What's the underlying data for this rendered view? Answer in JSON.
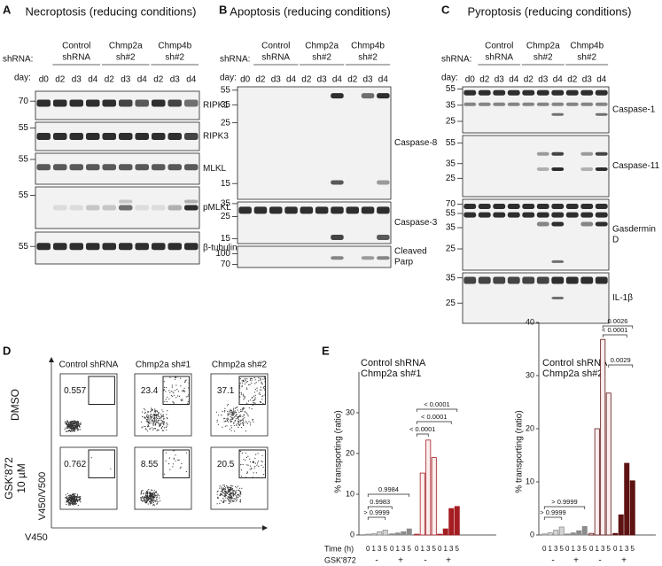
{
  "panels": {
    "A": {
      "label": "A",
      "title": "Necroptosis (reducing conditions)",
      "shrna_label": "shRNA:",
      "groups": [
        {
          "lines": [
            "Control",
            "shRNA"
          ],
          "color": "#8c8c8c"
        },
        {
          "lines": [
            "Chmp2a",
            "sh#2"
          ],
          "color": "#7b1f1f"
        },
        {
          "lines": [
            "Chmp4b",
            "sh#2"
          ],
          "color": "#4f86d8"
        }
      ],
      "day_label": "day:",
      "days": [
        "d0",
        "d2",
        "d3",
        "d4",
        "d2",
        "d3",
        "d4",
        "d2",
        "d3",
        "d4"
      ],
      "blots": [
        {
          "lines": [
            "RIPK1"
          ],
          "markers": [
            70
          ]
        },
        {
          "lines": [
            "RIPK3"
          ],
          "markers": [
            55
          ]
        },
        {
          "lines": [
            "MLKL"
          ],
          "markers": [
            55
          ]
        },
        {
          "lines": [
            "pMLKL"
          ],
          "markers": [
            55
          ]
        },
        {
          "lines": [
            "β-tubulin"
          ],
          "markers": [
            55
          ]
        }
      ]
    },
    "B": {
      "label": "B",
      "title": "Apoptosis (reducing conditions)",
      "shrna_label": "shRNA:",
      "groups": [
        {
          "lines": [
            "Control",
            "shRNA"
          ],
          "color": "#8c8c8c"
        },
        {
          "lines": [
            "Chmp2a",
            "sh#2"
          ],
          "color": "#7b1f1f"
        },
        {
          "lines": [
            "Chmp4b",
            "sh#2"
          ],
          "color": "#4f86d8"
        }
      ],
      "day_label": "day:",
      "days": [
        "d0",
        "d2",
        "d3",
        "d4",
        "d2",
        "d3",
        "d4",
        "d2",
        "d3",
        "d4"
      ],
      "blots": [
        {
          "lines": [
            "Caspase-8"
          ],
          "markers": [
            55,
            35,
            25,
            15
          ]
        },
        {
          "lines": [
            "Caspase-3"
          ],
          "markers": [
            35,
            25,
            15
          ]
        },
        {
          "lines": [
            "Cleaved",
            "Parp"
          ],
          "markers": [
            100,
            70
          ]
        }
      ]
    },
    "C": {
      "label": "C",
      "title": "Pyroptosis (reducing conditions)",
      "shrna_label": "shRNA:",
      "groups": [
        {
          "lines": [
            "Control",
            "shRNA"
          ],
          "color": "#8c8c8c"
        },
        {
          "lines": [
            "Chmp2a",
            "sh#2"
          ],
          "color": "#7b1f1f"
        },
        {
          "lines": [
            "Chmp4b",
            "sh#2"
          ],
          "color": "#4f86d8"
        }
      ],
      "day_label": "day:",
      "days": [
        "d0",
        "d2",
        "d3",
        "d4",
        "d2",
        "d3",
        "d4",
        "d2",
        "d3",
        "d4"
      ],
      "blots": [
        {
          "lines": [
            "Caspase-1"
          ],
          "markers": [
            55,
            35,
            25
          ]
        },
        {
          "lines": [
            "Caspase-11"
          ],
          "markers": [
            55,
            35,
            25
          ]
        },
        {
          "lines": [
            "Gasdermin",
            "D"
          ],
          "markers": [
            70,
            55,
            35,
            25
          ]
        },
        {
          "lines": [
            "IL-1β"
          ],
          "markers": [
            35,
            25
          ]
        }
      ]
    },
    "D": {
      "label": "D",
      "columns": [
        {
          "name": "Control shRNA",
          "color": "#8c8c8c"
        },
        {
          "name": "Chmp2a sh#1",
          "color": "#c0282d"
        },
        {
          "name": "Chmp2a sh#2",
          "color": "#7b1f1f"
        }
      ],
      "rows": [
        {
          "lines": [
            "DMSO"
          ]
        },
        {
          "lines": [
            "GSK'872",
            "10 µM"
          ]
        }
      ],
      "gate_values": [
        [
          0.557,
          23.4,
          37.1
        ],
        [
          0.762,
          8.55,
          20.5
        ]
      ],
      "y_axis": "V450/V500",
      "x_axis": "V450"
    },
    "E": {
      "label": "E",
      "time_label": "Time (h)",
      "times": [
        0,
        1,
        3,
        5
      ],
      "gsk_label": "GSK'872",
      "gsk_signs": [
        "-",
        "+",
        "-",
        "+"
      ],
      "charts": [
        {
          "type": "bar",
          "ylabel": "% transporting (ratio)",
          "ylim": [
            0,
            40
          ],
          "yticks": [
            0,
            10,
            20,
            30
          ],
          "series": [
            {
              "name": "Control shRNA",
              "color": "#8c8c8c",
              "values": [
                [
                  0.2,
                  0.3,
                  0.8,
                  1.2
                ],
                [
                  0.3,
                  0.5,
                  0.8,
                  1.5
                ]
              ]
            },
            {
              "name": "Chmp2a sh#1",
              "color": "#a51d22",
              "values": [
                [
                  0.2,
                  15.2,
                  23.3,
                  19
                ],
                [
                  0.2,
                  1.5,
                  6.5,
                  7
                ]
              ]
            }
          ],
          "p_values": [
            "> 0.9999",
            "0.9983",
            "0.9984",
            "< 0.0001",
            "< 0.0001",
            "< 0.0001"
          ]
        },
        {
          "type": "bar",
          "ylabel": "% transporting (ratio)",
          "ylim": [
            0,
            40
          ],
          "yticks": [
            0,
            10,
            20,
            30,
            40
          ],
          "series": [
            {
              "name": "Control shRNA",
              "color": "#8c8c8c",
              "values": [
                [
                  0.2,
                  0.4,
                  0.9,
                  1.5
                ],
                [
                  0.2,
                  0.4,
                  0.8,
                  1.6
                ]
              ]
            },
            {
              "name": "Chmp2a sh#2",
              "color": "#5e1212",
              "values": [
                [
                  0.3,
                  20,
                  36.8,
                  26.7
                ],
                [
                  0.3,
                  3.8,
                  13.5,
                  10.2
                ]
              ]
            }
          ],
          "p_values": [
            "> 0.9999",
            "> 0.9999",
            "0.0029",
            "< 0.0001",
            "0.0026"
          ]
        }
      ]
    }
  }
}
